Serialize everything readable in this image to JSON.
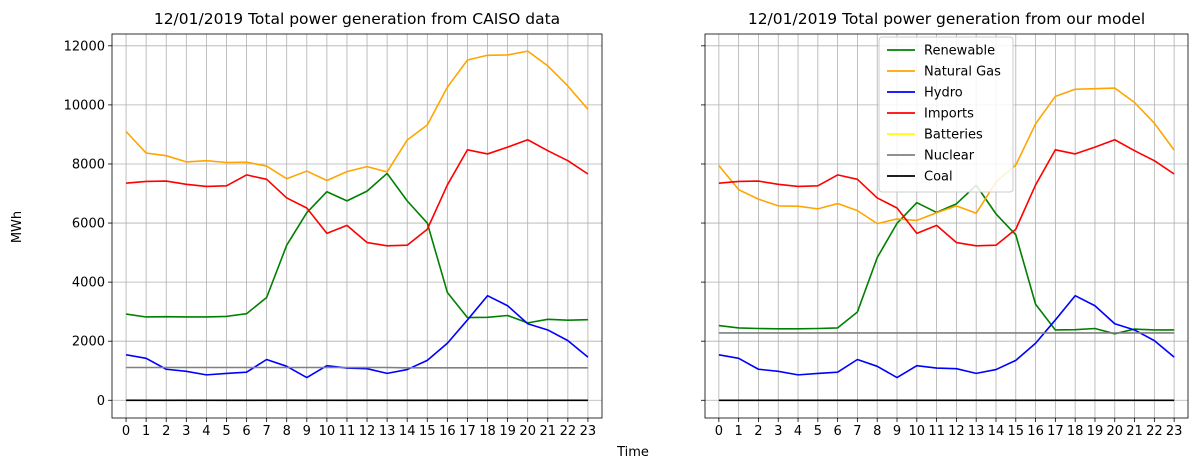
{
  "figure": {
    "ylabel": "MWh",
    "xlabel": "Time"
  },
  "chart_data": [
    {
      "type": "line",
      "title": "12/01/2019 Total power generation from CAISO data",
      "x": [
        0,
        1,
        2,
        3,
        4,
        5,
        6,
        7,
        8,
        9,
        10,
        11,
        12,
        13,
        14,
        15,
        16,
        17,
        18,
        19,
        20,
        21,
        22,
        23
      ],
      "xlim": [
        -0.7,
        23.7
      ],
      "ylim": [
        -600,
        12400
      ],
      "yticks": [
        0,
        2000,
        4000,
        6000,
        8000,
        10000,
        12000
      ],
      "grid": true,
      "legend": null,
      "series": [
        {
          "name": "Renewable",
          "color": "#008000",
          "values": [
            2920,
            2820,
            2830,
            2820,
            2820,
            2840,
            2930,
            3480,
            5250,
            6350,
            7060,
            6750,
            7080,
            7680,
            6750,
            6000,
            3650,
            2800,
            2810,
            2870,
            2620,
            2740,
            2710,
            2730
          ]
        },
        {
          "name": "Natural Gas",
          "color": "#FFA500",
          "values": [
            9100,
            8370,
            8280,
            8070,
            8110,
            8050,
            8060,
            7930,
            7500,
            7760,
            7440,
            7740,
            7910,
            7730,
            8810,
            9320,
            10600,
            11520,
            11680,
            11690,
            11820,
            11320,
            10640,
            9850
          ]
        },
        {
          "name": "Hydro",
          "color": "#0000FF",
          "values": [
            1540,
            1420,
            1050,
            980,
            860,
            910,
            950,
            1380,
            1150,
            770,
            1170,
            1090,
            1070,
            910,
            1040,
            1350,
            1930,
            2720,
            3540,
            3200,
            2590,
            2380,
            2020,
            1460
          ]
        },
        {
          "name": "Imports",
          "color": "#FF0000",
          "values": [
            7350,
            7410,
            7420,
            7310,
            7240,
            7260,
            7630,
            7480,
            6850,
            6510,
            5650,
            5920,
            5340,
            5230,
            5250,
            5790,
            7290,
            8480,
            8340,
            8570,
            8820,
            8450,
            8110,
            7660
          ]
        },
        {
          "name": "Batteries",
          "color": "#FFFF00",
          "values": [
            10,
            5,
            -5,
            10,
            5,
            -10,
            -5,
            5,
            10,
            5,
            5,
            0,
            10,
            5,
            -20,
            -10,
            -5,
            0,
            5,
            5,
            -5,
            0,
            5,
            0
          ]
        },
        {
          "name": "Nuclear",
          "color": "#808080",
          "values": [
            1110,
            1110,
            1110,
            1110,
            1110,
            1110,
            1110,
            1110,
            1110,
            1110,
            1110,
            1110,
            1110,
            1110,
            1100,
            1100,
            1100,
            1100,
            1100,
            1100,
            1100,
            1100,
            1100,
            1100
          ]
        },
        {
          "name": "Coal",
          "color": "#000000",
          "values": [
            0,
            0,
            0,
            0,
            0,
            0,
            0,
            0,
            0,
            0,
            0,
            0,
            0,
            0,
            0,
            0,
            0,
            0,
            0,
            0,
            0,
            0,
            0,
            0
          ]
        }
      ]
    },
    {
      "type": "line",
      "title": "12/01/2019 Total power generation from our model",
      "x": [
        0,
        1,
        2,
        3,
        4,
        5,
        6,
        7,
        8,
        9,
        10,
        11,
        12,
        13,
        14,
        15,
        16,
        17,
        18,
        19,
        20,
        21,
        22,
        23
      ],
      "xlim": [
        -0.7,
        23.7
      ],
      "ylim": [
        -600,
        12400
      ],
      "yticks": [
        0,
        2000,
        4000,
        6000,
        8000,
        10000,
        12000
      ],
      "grid": true,
      "legend": "top-center",
      "series": [
        {
          "name": "Renewable",
          "color": "#008000",
          "values": [
            2530,
            2450,
            2430,
            2420,
            2420,
            2430,
            2450,
            2990,
            4830,
            5990,
            6690,
            6360,
            6650,
            7280,
            6310,
            5600,
            3250,
            2380,
            2390,
            2430,
            2250,
            2410,
            2380,
            2380
          ]
        },
        {
          "name": "Natural Gas",
          "color": "#FFA500",
          "values": [
            7950,
            7130,
            6810,
            6580,
            6570,
            6480,
            6660,
            6420,
            5980,
            6140,
            6090,
            6350,
            6580,
            6330,
            7390,
            7960,
            9360,
            10290,
            10530,
            10550,
            10570,
            10080,
            9380,
            8470
          ]
        },
        {
          "name": "Hydro",
          "color": "#0000FF",
          "values": [
            1540,
            1420,
            1050,
            980,
            860,
            910,
            950,
            1380,
            1150,
            770,
            1170,
            1090,
            1070,
            910,
            1040,
            1350,
            1930,
            2720,
            3540,
            3200,
            2590,
            2380,
            2020,
            1460
          ]
        },
        {
          "name": "Imports",
          "color": "#FF0000",
          "values": [
            7350,
            7410,
            7420,
            7310,
            7240,
            7260,
            7630,
            7480,
            6850,
            6510,
            5650,
            5920,
            5340,
            5230,
            5250,
            5790,
            7290,
            8480,
            8340,
            8570,
            8820,
            8450,
            8110,
            7660
          ]
        },
        {
          "name": "Batteries",
          "color": "#FFFF00",
          "values": [
            0,
            0,
            0,
            0,
            0,
            0,
            0,
            0,
            0,
            0,
            0,
            0,
            0,
            0,
            0,
            0,
            0,
            0,
            0,
            0,
            0,
            0,
            0,
            0
          ]
        },
        {
          "name": "Nuclear",
          "color": "#808080",
          "values": [
            2280,
            2280,
            2280,
            2280,
            2280,
            2280,
            2280,
            2280,
            2280,
            2280,
            2280,
            2280,
            2280,
            2280,
            2280,
            2280,
            2280,
            2280,
            2280,
            2280,
            2280,
            2280,
            2280,
            2280
          ]
        },
        {
          "name": "Coal",
          "color": "#000000",
          "values": [
            0,
            0,
            0,
            0,
            0,
            0,
            0,
            0,
            0,
            0,
            0,
            0,
            0,
            0,
            0,
            0,
            0,
            0,
            0,
            0,
            0,
            0,
            0,
            0
          ]
        }
      ]
    }
  ]
}
